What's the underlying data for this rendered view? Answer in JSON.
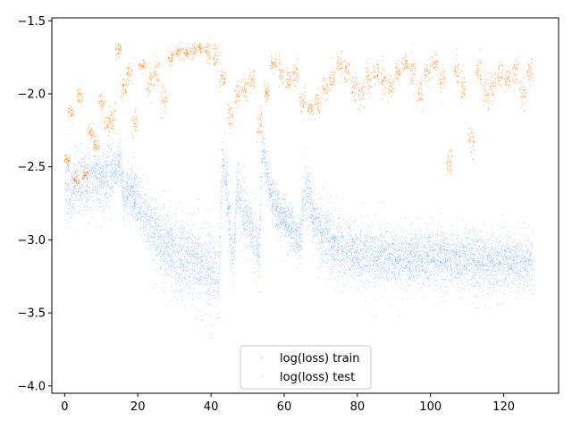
{
  "chart_data": {
    "type": "scatter",
    "title": "",
    "xlabel": "",
    "ylabel": "",
    "xlim": [
      -3.5,
      135
    ],
    "ylim": [
      -4.05,
      -1.48
    ],
    "xticks": [
      0,
      20,
      40,
      60,
      80,
      100,
      120
    ],
    "xtick_labels": [
      "0",
      "20",
      "40",
      "60",
      "80",
      "100",
      "120"
    ],
    "yticks": [
      -4.0,
      -3.5,
      -3.0,
      -2.5,
      -2.0,
      -1.5
    ],
    "ytick_labels": [
      "−4.0",
      "−3.5",
      "−3.0",
      "−2.5",
      "−2.0",
      "−1.5"
    ],
    "grid": false,
    "legend": {
      "placement": "bottom-center"
    },
    "series": [
      {
        "name": "log(loss) train",
        "color": "#1f77ff",
        "marker": "point",
        "x": [
          0,
          2,
          4,
          6,
          8,
          10,
          12,
          14,
          15,
          16,
          18,
          20,
          22,
          25,
          30,
          35,
          40,
          42,
          43,
          44,
          45,
          46,
          47,
          48,
          50,
          52,
          53,
          54,
          55,
          56,
          57,
          58,
          60,
          62,
          64,
          66,
          67,
          68,
          70,
          75,
          80,
          90,
          100,
          110,
          120,
          128
        ],
        "y": [
          -2.65,
          -2.65,
          -2.6,
          -2.6,
          -2.55,
          -2.6,
          -2.55,
          -2.5,
          -2.45,
          -2.7,
          -2.65,
          -2.75,
          -2.85,
          -2.95,
          -3.1,
          -3.15,
          -3.2,
          -3.3,
          -2.45,
          -2.6,
          -2.9,
          -3.15,
          -2.6,
          -2.75,
          -2.85,
          -3.0,
          -3.1,
          -2.35,
          -2.5,
          -2.65,
          -2.75,
          -2.8,
          -2.85,
          -2.9,
          -3.0,
          -2.65,
          -2.75,
          -2.85,
          -2.95,
          -3.05,
          -3.1,
          -3.12,
          -3.13,
          -3.14,
          -3.15,
          -3.15
        ],
        "spread": [
          0.25,
          0.2,
          0.2,
          0.2,
          0.2,
          0.2,
          0.2,
          0.15,
          0.15,
          0.15,
          0.15,
          0.2,
          0.2,
          0.22,
          0.25,
          0.25,
          0.28,
          0.25,
          0.15,
          0.2,
          0.22,
          0.22,
          0.2,
          0.2,
          0.2,
          0.2,
          0.15,
          0.15,
          0.15,
          0.15,
          0.15,
          0.15,
          0.15,
          0.15,
          0.15,
          0.18,
          0.18,
          0.18,
          0.2,
          0.2,
          0.18,
          0.18,
          0.18,
          0.18,
          0.18,
          0.18
        ]
      },
      {
        "name": "log(loss) test",
        "color": "#ff7f0e",
        "marker": "point",
        "x": [
          0.5,
          1.5,
          3,
          4,
          5.5,
          7,
          8.5,
          10,
          11.5,
          13,
          14.5,
          16,
          17.5,
          19,
          21,
          23,
          25,
          27,
          29,
          31,
          33,
          35,
          37,
          39,
          41,
          43,
          45,
          47,
          49,
          51,
          53,
          55,
          57,
          59,
          61,
          63,
          65,
          67,
          69,
          71,
          73,
          75,
          77,
          79,
          81,
          83,
          85,
          87,
          89,
          91,
          93,
          95,
          97,
          99,
          101,
          103,
          105,
          107,
          109,
          111,
          113,
          115,
          117,
          119,
          121,
          123,
          125,
          127
        ],
        "y": [
          -2.45,
          -2.12,
          -2.6,
          -2.0,
          -2.55,
          -2.25,
          -2.35,
          -2.05,
          -2.2,
          -2.15,
          -1.7,
          -1.95,
          -1.85,
          -2.2,
          -1.8,
          -1.9,
          -1.85,
          -2.05,
          -1.75,
          -1.7,
          -1.72,
          -1.7,
          -1.68,
          -1.72,
          -1.75,
          -1.9,
          -2.15,
          -2.0,
          -1.95,
          -1.9,
          -2.2,
          -2.0,
          -1.8,
          -1.85,
          -1.9,
          -1.85,
          -2.05,
          -2.1,
          -2.05,
          -1.95,
          -1.9,
          -1.8,
          -1.85,
          -1.95,
          -2.0,
          -1.9,
          -1.85,
          -1.9,
          -1.95,
          -1.85,
          -1.8,
          -1.85,
          -2.0,
          -1.85,
          -1.8,
          -1.9,
          -2.45,
          -1.85,
          -1.95,
          -2.3,
          -1.85,
          -2.0,
          -1.95,
          -1.85,
          -1.9,
          -1.85,
          -2.0,
          -1.85
        ],
        "spread": [
          0.03,
          0.05,
          0.08,
          0.06,
          0.05,
          0.05,
          0.05,
          0.08,
          0.08,
          0.1,
          0.05,
          0.08,
          0.08,
          0.1,
          0.05,
          0.1,
          0.1,
          0.1,
          0.05,
          0.05,
          0.05,
          0.05,
          0.04,
          0.08,
          0.1,
          0.08,
          0.1,
          0.1,
          0.08,
          0.08,
          0.1,
          0.08,
          0.05,
          0.1,
          0.1,
          0.1,
          0.1,
          0.08,
          0.1,
          0.1,
          0.1,
          0.1,
          0.08,
          0.1,
          0.1,
          0.1,
          0.08,
          0.1,
          0.1,
          0.08,
          0.08,
          0.1,
          0.1,
          0.08,
          0.08,
          0.1,
          0.1,
          0.1,
          0.1,
          0.1,
          0.1,
          0.12,
          0.1,
          0.1,
          0.08,
          0.1,
          0.12,
          0.1
        ]
      }
    ]
  }
}
